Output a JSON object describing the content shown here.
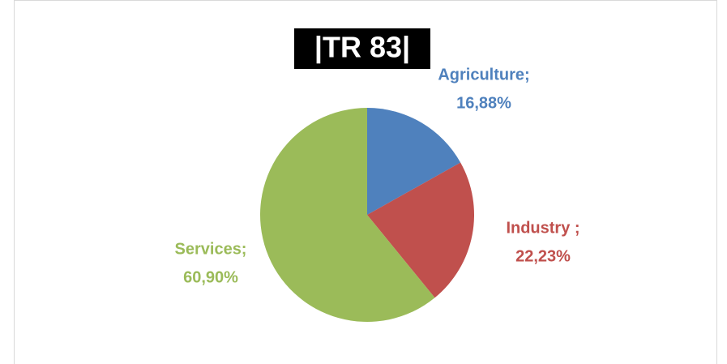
{
  "chart_data": {
    "type": "pie",
    "title": "|TR 83|",
    "categories": [
      "Agriculture;",
      "Industry ;",
      "Services;"
    ],
    "values": [
      16.88,
      22.23,
      60.9
    ],
    "value_labels": [
      "16,88%",
      "22,23%",
      "60,90%"
    ],
    "colors": [
      "#4f81bd",
      "#c0504d",
      "#9bbb59"
    ]
  }
}
